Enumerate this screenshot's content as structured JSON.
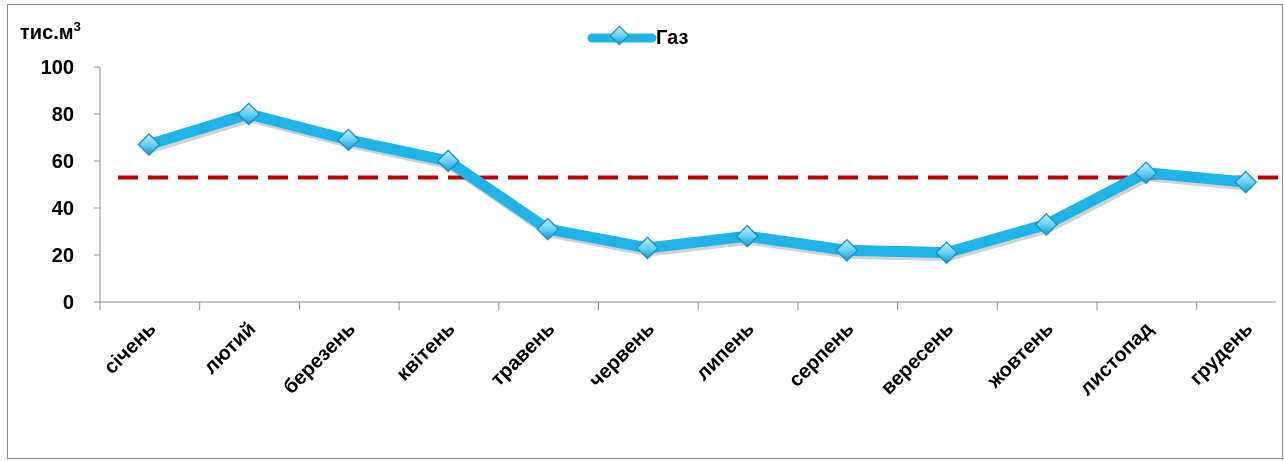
{
  "chart_data": {
    "type": "line",
    "ylabel": "тис.м",
    "ylabel_superscript": "3",
    "ylim": [
      0,
      100
    ],
    "yticks": [
      0,
      20,
      40,
      60,
      80,
      100
    ],
    "categories": [
      "січень",
      "лютий",
      "березень",
      "квітень",
      "травень",
      "червень",
      "липень",
      "серпень",
      "вересень",
      "жовтень",
      "листопад",
      "грудень"
    ],
    "series": [
      {
        "name": "Газ",
        "values": [
          67,
          80,
          69,
          60,
          31,
          23,
          28,
          22,
          21,
          33,
          55,
          51
        ],
        "color": "#1EB4E8",
        "marker": "diamond"
      }
    ],
    "reference_line": {
      "value": 53,
      "style": "dashed",
      "color": "#C00000"
    },
    "legend_position": "top-center",
    "grid": false
  }
}
